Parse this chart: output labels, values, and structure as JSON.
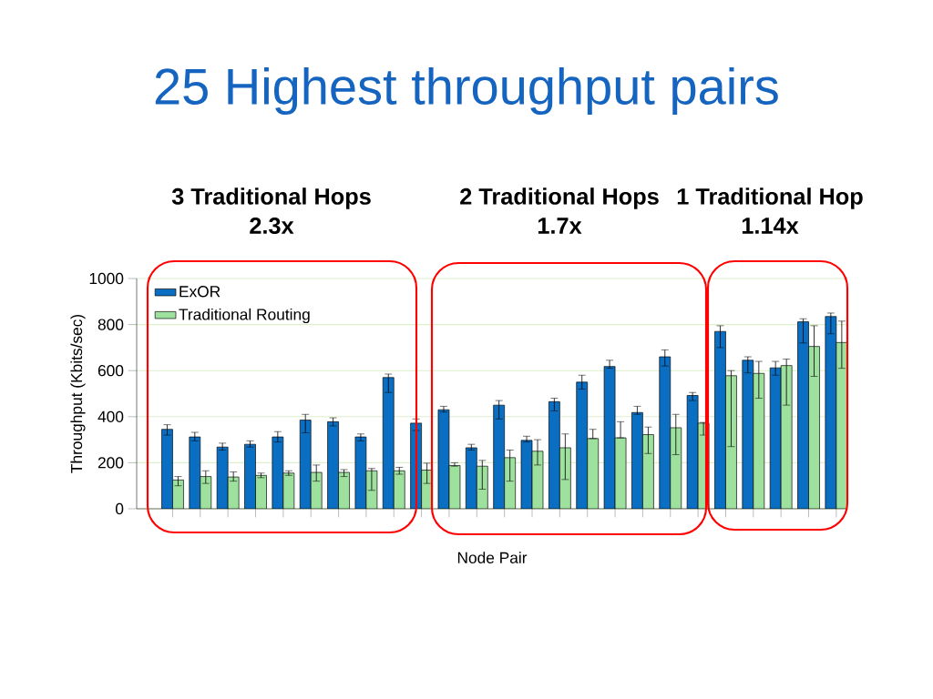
{
  "chart_data": {
    "type": "bar",
    "title": "25 Highest throughput pairs",
    "annotations": [
      "3 Traditional Hops",
      "2.3x",
      "2 Traditional Hops",
      "1.7x",
      "1 Traditional Hop",
      "1.14x"
    ],
    "xlabel": "Node Pair",
    "ylabel": "Throughput (Kbits/sec)",
    "categories": [
      null,
      null,
      null,
      null,
      null,
      null,
      null,
      null,
      null,
      null,
      null,
      null,
      null,
      null,
      null,
      null,
      null,
      null,
      null,
      null,
      null,
      null,
      null,
      null,
      null
    ],
    "series": [
      {
        "name": "ExOR",
        "color": "#0a6fc2",
        "values": [
          345,
          312,
          268,
          280,
          312,
          385,
          378,
          312,
          570,
          372,
          430,
          265,
          450,
          297,
          465,
          550,
          618,
          418,
          660,
          492,
          770,
          645,
          612,
          812,
          835
        ],
        "errors": [
          [
            320,
            365
          ],
          [
            295,
            332
          ],
          [
            255,
            285
          ],
          [
            268,
            295
          ],
          [
            290,
            335
          ],
          [
            330,
            410
          ],
          [
            360,
            395
          ],
          [
            295,
            325
          ],
          [
            505,
            585
          ],
          [
            340,
            390
          ],
          [
            420,
            445
          ],
          [
            255,
            280
          ],
          [
            390,
            470
          ],
          [
            290,
            315
          ],
          [
            425,
            480
          ],
          [
            520,
            580
          ],
          [
            610,
            645
          ],
          [
            410,
            445
          ],
          [
            620,
            690
          ],
          [
            470,
            505
          ],
          [
            700,
            795
          ],
          [
            590,
            660
          ],
          [
            580,
            640
          ],
          [
            720,
            825
          ],
          [
            760,
            850
          ]
        ]
      },
      {
        "name": "Traditional Routing",
        "color": "#9ee09e",
        "values": [
          125,
          140,
          138,
          145,
          155,
          158,
          158,
          165,
          165,
          168,
          188,
          185,
          222,
          250,
          265,
          305,
          308,
          322,
          352,
          372,
          578,
          588,
          622,
          705,
          722
        ],
        "errors": [
          [
            100,
            140
          ],
          [
            110,
            165
          ],
          [
            120,
            160
          ],
          [
            135,
            155
          ],
          [
            145,
            165
          ],
          [
            120,
            190
          ],
          [
            140,
            170
          ],
          [
            80,
            175
          ],
          [
            150,
            180
          ],
          [
            110,
            198
          ],
          [
            185,
            200
          ],
          [
            85,
            210
          ],
          [
            120,
            255
          ],
          [
            190,
            300
          ],
          [
            127,
            325
          ],
          [
            305,
            345
          ],
          [
            308,
            378
          ],
          [
            240,
            355
          ],
          [
            235,
            410
          ],
          [
            320,
            375
          ],
          [
            270,
            600
          ],
          [
            480,
            640
          ],
          [
            450,
            650
          ],
          [
            575,
            795
          ],
          [
            610,
            815
          ]
        ]
      }
    ],
    "ylim": [
      0,
      1000
    ],
    "yticks": [
      0,
      200,
      400,
      600,
      800,
      1000
    ],
    "grid": "y",
    "legend": "top left"
  }
}
